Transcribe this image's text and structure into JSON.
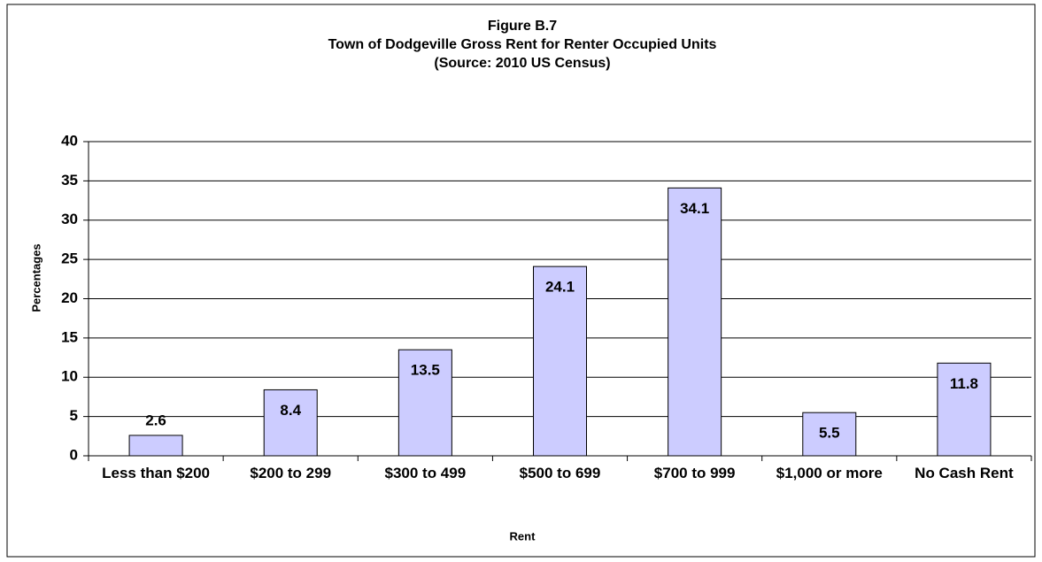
{
  "chart_data": {
    "type": "bar",
    "figure_label": "Figure B.7",
    "title": "Town of Dodgeville Gross Rent for Renter Occupied Units",
    "subtitle": "(Source:  2010 US Census)",
    "x_label": "Rent",
    "y_label": "Percentages",
    "categories": [
      "Less than $200",
      "$200 to 299",
      "$300 to 499",
      "$500 to 699",
      "$700 to 999",
      "$1,000 or more",
      "No Cash Rent"
    ],
    "values": [
      2.6,
      8.4,
      13.5,
      24.1,
      34.1,
      5.5,
      11.8
    ],
    "color": "#ccccff",
    "ylim": [
      0,
      40
    ],
    "yticks": [
      0,
      5,
      10,
      15,
      20,
      25,
      30,
      35,
      40
    ],
    "grid": true
  }
}
